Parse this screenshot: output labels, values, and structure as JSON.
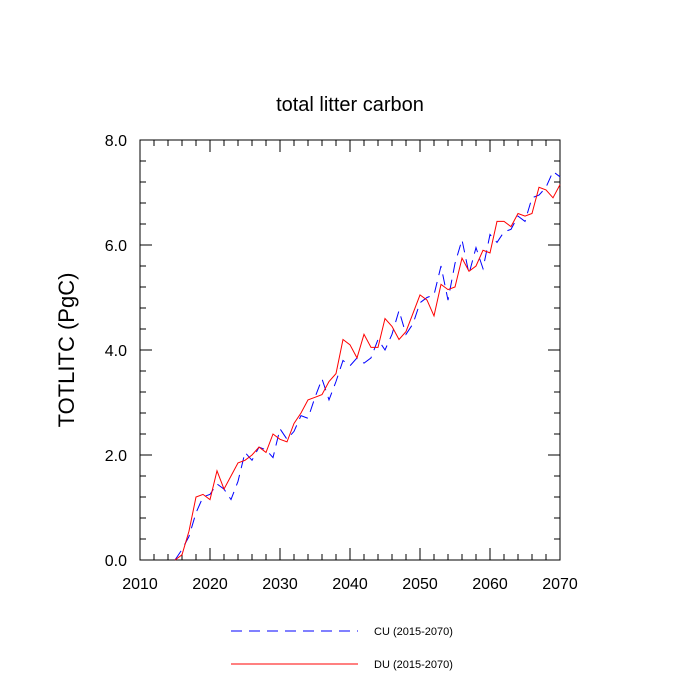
{
  "chart_data": {
    "type": "line",
    "title": "total litter carbon",
    "xlabel": "",
    "ylabel": "TOTLITC  (PgC)",
    "xlim": [
      2010,
      2070
    ],
    "ylim": [
      0,
      8
    ],
    "x_ticks": [
      2010,
      2020,
      2030,
      2040,
      2050,
      2060,
      2070
    ],
    "x_tick_labels": [
      "2010",
      "2020",
      "2030",
      "2040",
      "2050",
      "2060",
      "2070"
    ],
    "y_ticks": [
      0,
      2,
      4,
      6,
      8
    ],
    "y_tick_labels": [
      "0.0",
      "2.0",
      "4.0",
      "6.0",
      "8.0"
    ],
    "grid": false,
    "legend_position": "bottom",
    "x": [
      2015,
      2016,
      2017,
      2018,
      2019,
      2020,
      2021,
      2022,
      2023,
      2024,
      2025,
      2026,
      2027,
      2028,
      2029,
      2030,
      2031,
      2032,
      2033,
      2034,
      2035,
      2036,
      2037,
      2038,
      2039,
      2040,
      2041,
      2042,
      2043,
      2044,
      2045,
      2046,
      2047,
      2048,
      2049,
      2050,
      2051,
      2052,
      2053,
      2054,
      2055,
      2056,
      2057,
      2058,
      2059,
      2060,
      2061,
      2062,
      2063,
      2064,
      2065,
      2066,
      2067,
      2068,
      2069,
      2070
    ],
    "series": [
      {
        "name": "CU (2015-2070)",
        "color": "#0000ff",
        "style": "dashed",
        "values": [
          0.0,
          0.2,
          0.45,
          0.9,
          1.2,
          1.25,
          1.45,
          1.35,
          1.15,
          1.5,
          2.05,
          1.9,
          2.15,
          2.1,
          1.95,
          2.5,
          2.3,
          2.45,
          2.75,
          2.7,
          3.1,
          3.45,
          3.05,
          3.4,
          3.8,
          3.7,
          3.85,
          3.75,
          3.85,
          4.2,
          4.0,
          4.3,
          4.75,
          4.3,
          4.5,
          4.9,
          5.0,
          5.05,
          5.6,
          4.95,
          5.65,
          6.1,
          5.45,
          5.95,
          5.55,
          6.2,
          6.05,
          6.25,
          6.3,
          6.55,
          6.45,
          6.9,
          6.95,
          7.1,
          7.4,
          7.3
        ]
      },
      {
        "name": "DU (2015-2070)",
        "color": "#ff0000",
        "style": "solid",
        "values": [
          0.0,
          0.1,
          0.55,
          1.2,
          1.25,
          1.15,
          1.7,
          1.35,
          1.6,
          1.85,
          1.9,
          2.0,
          2.15,
          2.05,
          2.4,
          2.3,
          2.25,
          2.6,
          2.8,
          3.05,
          3.1,
          3.15,
          3.4,
          3.55,
          4.2,
          4.1,
          3.85,
          4.3,
          4.05,
          4.05,
          4.6,
          4.45,
          4.2,
          4.35,
          4.7,
          5.05,
          4.95,
          4.65,
          5.25,
          5.15,
          5.2,
          5.75,
          5.5,
          5.6,
          5.9,
          5.85,
          6.45,
          6.45,
          6.35,
          6.6,
          6.55,
          6.6,
          7.1,
          7.05,
          6.9,
          7.15
        ]
      }
    ]
  }
}
